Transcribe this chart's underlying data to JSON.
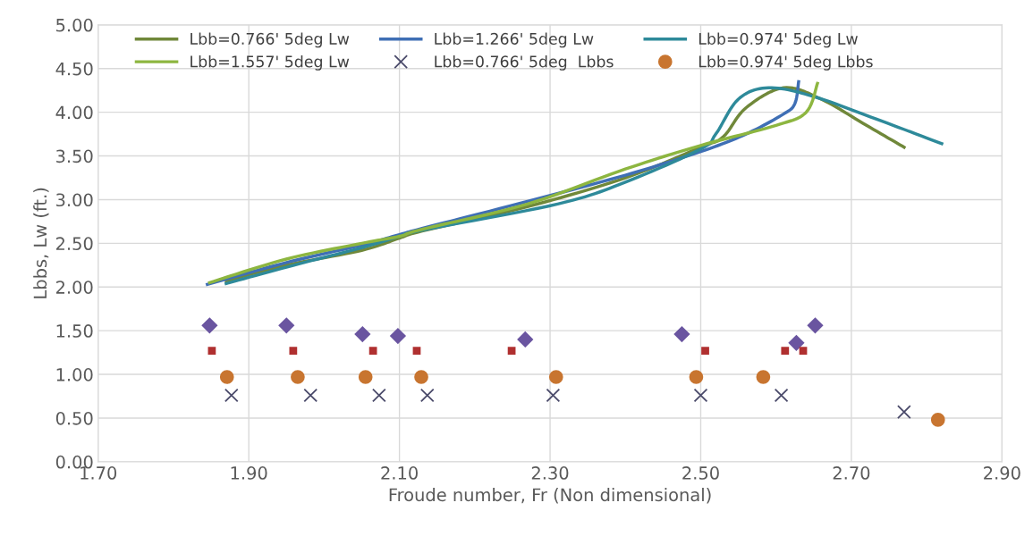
{
  "chart_data": {
    "type": "line",
    "xlabel": "Froude number, Fr (Non dimensional)",
    "ylabel": "Lbbs, Lw (ft.)",
    "xlim": [
      1.7,
      2.9
    ],
    "xticks": [
      {
        "value": 1.7,
        "label": "1.70"
      },
      {
        "value": 1.9,
        "label": "1.90"
      },
      {
        "value": 2.1,
        "label": "2.10"
      },
      {
        "value": 2.3,
        "label": "2.30"
      },
      {
        "value": 2.5,
        "label": "2.50"
      },
      {
        "value": 2.7,
        "label": "2.70"
      },
      {
        "value": 2.9,
        "label": "2.90"
      }
    ],
    "ylim": [
      0,
      5
    ],
    "yticks": [
      {
        "value": 0,
        "label": "0.00"
      },
      {
        "value": 0.5,
        "label": "0.50"
      },
      {
        "value": 1,
        "label": "1.00"
      },
      {
        "value": 1.5,
        "label": "1.50"
      },
      {
        "value": 2,
        "label": "2.00"
      },
      {
        "value": 2.5,
        "label": "2.50"
      },
      {
        "value": 3,
        "label": "3.00"
      },
      {
        "value": 3.5,
        "label": "3.50"
      },
      {
        "value": 4,
        "label": "4.00"
      },
      {
        "value": 4.5,
        "label": "4.50"
      },
      {
        "value": 5,
        "label": "5.00"
      }
    ],
    "grid": true,
    "legend": "top",
    "marker": "none",
    "line_style": "solid",
    "series": [
      {
        "name": "Lbb=0.766' 5deg Lw",
        "color": "#70883a",
        "x": [
          1.87,
          1.95,
          2.05,
          2.1,
          2.13,
          2.27,
          2.4,
          2.5,
          2.53,
          2.56,
          2.61,
          2.66,
          2.72,
          2.77
        ],
        "values": [
          2.07,
          2.25,
          2.42,
          2.56,
          2.64,
          2.92,
          3.25,
          3.6,
          3.72,
          4.05,
          4.28,
          4.15,
          3.85,
          3.6
        ]
      },
      {
        "name": "Lbb=1.266' 5deg Lw",
        "color": "#3f6fb5",
        "x": [
          1.845,
          1.95,
          2.05,
          2.1,
          2.13,
          2.27,
          2.4,
          2.5,
          2.56,
          2.61,
          2.625,
          2.63
        ],
        "values": [
          2.03,
          2.28,
          2.48,
          2.6,
          2.67,
          2.98,
          3.28,
          3.55,
          3.75,
          3.98,
          4.1,
          4.35
        ]
      },
      {
        "name": "Lbb=0.974' 5deg Lw",
        "color": "#2e8a9a",
        "x": [
          1.87,
          1.96,
          2.05,
          2.1,
          2.13,
          2.31,
          2.4,
          2.5,
          2.52,
          2.55,
          2.59,
          2.65,
          2.74,
          2.82
        ],
        "values": [
          2.04,
          2.25,
          2.45,
          2.58,
          2.65,
          2.95,
          3.2,
          3.58,
          3.75,
          4.15,
          4.28,
          4.18,
          3.9,
          3.64
        ]
      },
      {
        "name": "Lbb=1.557' 5deg Lw",
        "color": "#8db640",
        "x": [
          1.848,
          1.95,
          2.05,
          2.1,
          2.13,
          2.27,
          2.4,
          2.5,
          2.6,
          2.64,
          2.655
        ],
        "values": [
          2.05,
          2.32,
          2.5,
          2.58,
          2.66,
          2.95,
          3.35,
          3.62,
          3.85,
          4.0,
          4.33
        ]
      },
      {
        "name": "Lbb=0.766' 5deg  Lbbs",
        "type": "scatter",
        "marker": "cross",
        "color": "#4a4a6a",
        "x": [
          1.877,
          1.982,
          2.073,
          2.137,
          2.304,
          2.5,
          2.607,
          2.77
        ],
        "values": [
          0.76,
          0.76,
          0.76,
          0.76,
          0.76,
          0.76,
          0.76,
          0.57
        ]
      },
      {
        "name": "Lbb=0.974' 5deg Lbbs",
        "type": "scatter",
        "marker": "circle",
        "color": "#c87530",
        "x": [
          1.871,
          1.965,
          2.055,
          2.129,
          2.308,
          2.494,
          2.583,
          2.815
        ],
        "values": [
          0.97,
          0.97,
          0.97,
          0.97,
          0.97,
          0.97,
          0.97,
          0.48
        ]
      },
      {
        "type": "scatter",
        "marker": "diamond",
        "color": "#6a55a0",
        "x": [
          1.848,
          1.95,
          2.051,
          2.098,
          2.267,
          2.475,
          2.627,
          2.652
        ],
        "values": [
          1.56,
          1.56,
          1.46,
          1.44,
          1.4,
          1.46,
          1.36,
          1.56
        ]
      },
      {
        "type": "scatter",
        "marker": "square",
        "color": "#b03030",
        "x": [
          1.851,
          1.959,
          2.065,
          2.123,
          2.249,
          2.506,
          2.612,
          2.636
        ],
        "values": [
          1.27,
          1.27,
          1.27,
          1.27,
          1.27,
          1.27,
          1.27,
          1.27
        ]
      }
    ]
  }
}
